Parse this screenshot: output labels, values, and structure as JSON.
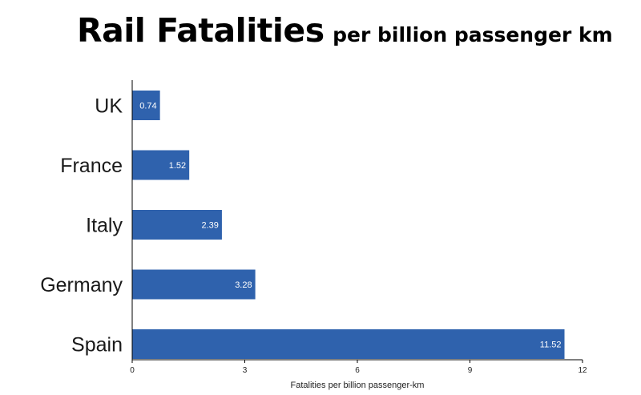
{
  "chart_data": {
    "type": "bar",
    "orientation": "horizontal",
    "title": "Rail Fatalities",
    "subtitle": "per billion passenger km",
    "categories": [
      "UK",
      "France",
      "Italy",
      "Germany",
      "Spain"
    ],
    "values": [
      0.74,
      1.52,
      2.39,
      3.28,
      11.52
    ],
    "data_labels": [
      "0.74",
      "1.52",
      "2.39",
      "3.28",
      "11.52"
    ],
    "xlabel": "Fatalities per billion passenger-km",
    "ylabel": "",
    "xlim": [
      0,
      12
    ],
    "xticks": [
      0,
      3,
      6,
      9,
      12
    ],
    "grid": false,
    "bar_color": "#2f62ad"
  }
}
